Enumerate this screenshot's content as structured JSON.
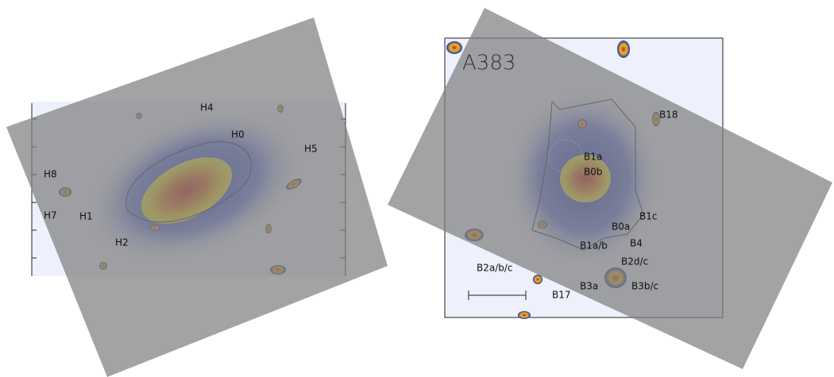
{
  "left_panel": {
    "labels": [
      "H4",
      "H0",
      "H5",
      "H8",
      "H7",
      "H1",
      "H2"
    ]
  },
  "right_panel": {
    "title": "A383",
    "labels": [
      "B18",
      "B1a",
      "B0b",
      "B1c",
      "B0a",
      "B4",
      "B1a/b",
      "B2d/c",
      "B2a/b/c",
      "B3a",
      "B3b/c",
      "B17"
    ]
  }
}
